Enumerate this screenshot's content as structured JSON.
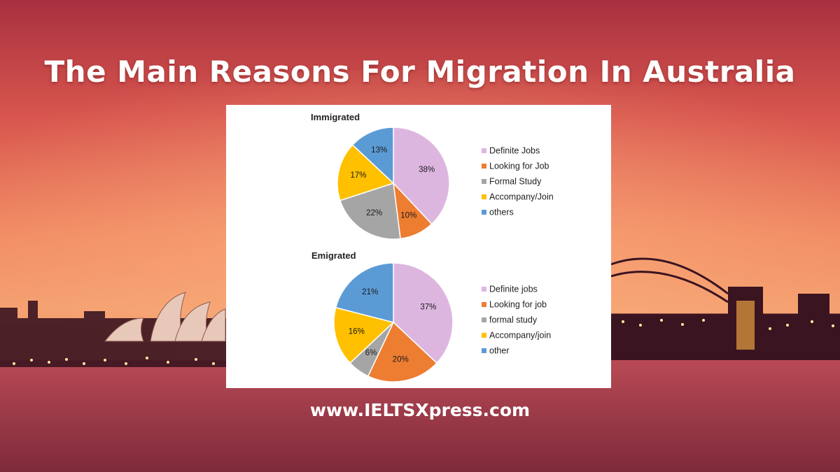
{
  "header": {
    "title": "The Main Reasons For Migration In Australia"
  },
  "footer": {
    "website": "www.IELTSXpress.com"
  },
  "colors": {
    "definite": "#DDB6E0",
    "looking": "#ED7D31",
    "formal": "#A5A5A5",
    "accompany": "#FFC000",
    "others": "#5B9BD5"
  },
  "chart_data": [
    {
      "type": "pie",
      "title": "Immigrated",
      "categories": [
        "Definite Jobs",
        "Looking for Job",
        "Formal Study",
        "Accompany/Join",
        "others"
      ],
      "values": [
        38,
        10,
        22,
        17,
        13
      ],
      "labels": [
        "38%",
        "10%",
        "22%",
        "17%",
        "13%"
      ],
      "colors": [
        "#DDB6E0",
        "#ED7D31",
        "#A5A5A5",
        "#FFC000",
        "#5B9BD5"
      ],
      "legend_position": "right"
    },
    {
      "type": "pie",
      "title": "Emigrated",
      "categories": [
        "Definite jobs",
        "Looking for job",
        "formal study",
        "Accompany/join",
        "other"
      ],
      "values": [
        37,
        20,
        6,
        16,
        21
      ],
      "labels": [
        "37%",
        "20%",
        "6%",
        "16%",
        "21%"
      ],
      "colors": [
        "#DDB6E0",
        "#ED7D31",
        "#A5A5A5",
        "#FFC000",
        "#5B9BD5"
      ],
      "legend_position": "right"
    }
  ]
}
